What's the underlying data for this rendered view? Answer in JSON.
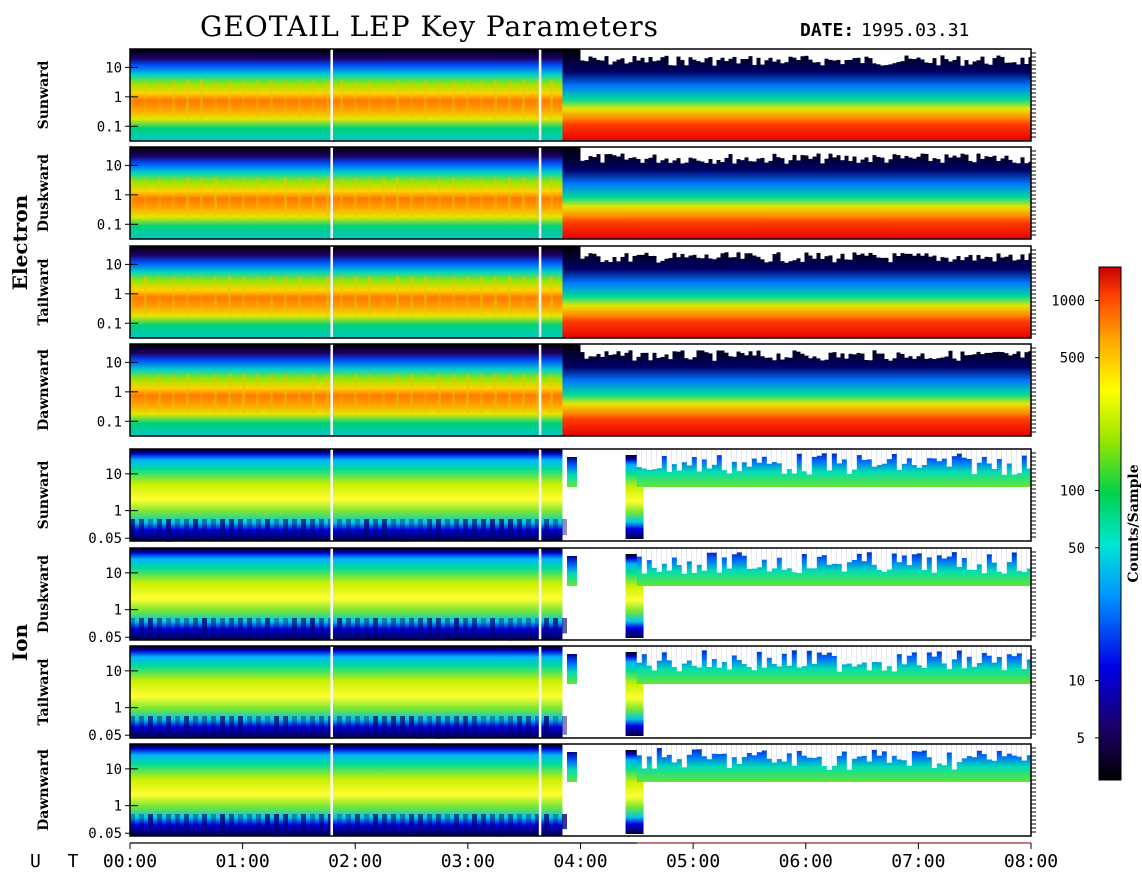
{
  "header": {
    "title": "GEOTAIL LEP Key Parameters",
    "date_label": "DATE:",
    "date_value": "1995.03.31"
  },
  "chart_data": {
    "type": "heatmap",
    "title": "GEOTAIL LEP Key Parameters",
    "x_axis_prefix": "U T",
    "x_tick_labels": [
      "00:00",
      "01:00",
      "02:00",
      "03:00",
      "04:00",
      "05:00",
      "06:00",
      "07:00",
      "08:00"
    ],
    "x_range_hours": [
      0,
      8
    ],
    "groups": [
      {
        "name": "Electron",
        "y_scale": "log",
        "y_ticks": [
          "10",
          "1",
          "0.1"
        ],
        "panels": [
          "Sunward",
          "Duskward",
          "Tailward",
          "Dawnward"
        ]
      },
      {
        "name": "Ion",
        "y_scale": "log",
        "y_ticks": [
          "10",
          "1",
          "0.05"
        ],
        "panels": [
          "Sunward",
          "Duskward",
          "Tailward",
          "Dawnward"
        ]
      }
    ],
    "colorbar": {
      "label": "Counts/Sample",
      "scale": "log",
      "range": [
        3,
        1500
      ],
      "tick_labels": [
        "1000",
        "500",
        "100",
        "50",
        "10",
        "5"
      ],
      "tick_values": [
        1000,
        500,
        100,
        50,
        10,
        5
      ],
      "colors": [
        "#000000",
        "#1a0066",
        "#0000e6",
        "#0096ff",
        "#00e6d2",
        "#00d24b",
        "#96e600",
        "#ffff00",
        "#ffa500",
        "#ff4600",
        "#c80000"
      ]
    }
  }
}
